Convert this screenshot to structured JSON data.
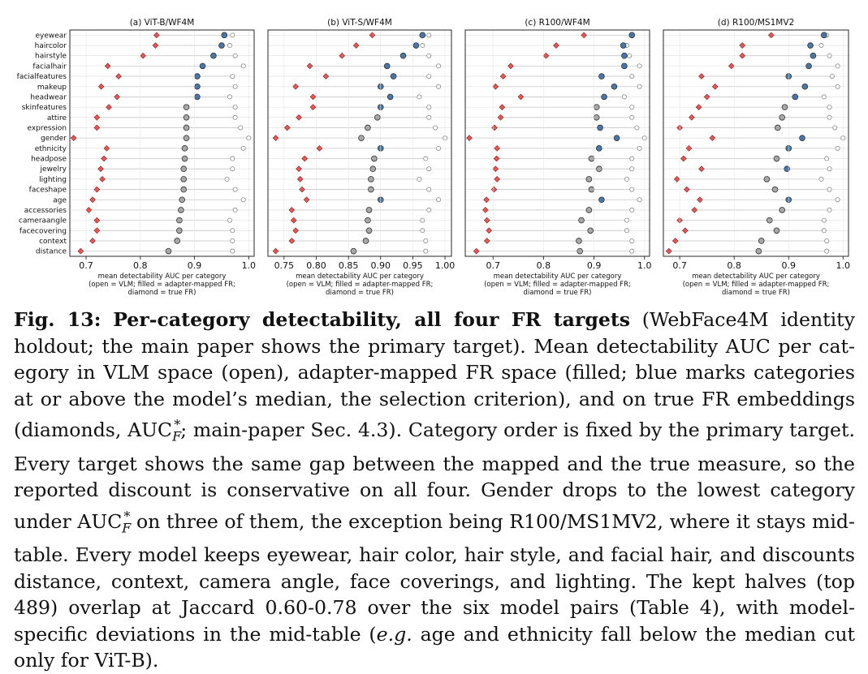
{
  "chart_data": {
    "type": "scatter",
    "xlabel": "mean detectability AUC per category\n(open = VLM; filled = adapter-mapped FR;\ndiamond = true FR)",
    "categories": [
      "eyewear",
      "haircolor",
      "hairstyle",
      "facialhair",
      "facialfeatures",
      "makeup",
      "headwear",
      "skinfeatures",
      "attire",
      "expression",
      "gender",
      "ethnicity",
      "headpose",
      "jewelry",
      "lighting",
      "faceshape",
      "age",
      "accessories",
      "cameraangle",
      "facecovering",
      "context",
      "distance"
    ],
    "colors": {
      "above_median": "#4a77a8",
      "below_median": "#a8a8a8",
      "true_fr": "#e05a5a",
      "open": "#ffffff",
      "edge": "#333333",
      "gridline": "#dddddd"
    },
    "panels": [
      {
        "title": "(a) ViT-B/WF4M",
        "xlim": [
          0.67,
          1.01
        ],
        "xticks": [
          "0.7",
          "0.8",
          "0.9",
          "1.0"
        ],
        "vlm": [
          0.97,
          0.965,
          0.975,
          0.99,
          0.97,
          0.975,
          0.965,
          0.975,
          0.975,
          0.985,
          1.0,
          0.99,
          0.97,
          0.97,
          0.96,
          0.975,
          0.99,
          0.975,
          0.965,
          0.97,
          0.97,
          0.97
        ],
        "fr_mapped": [
          0.955,
          0.95,
          0.935,
          0.915,
          0.905,
          0.905,
          0.905,
          0.885,
          0.885,
          0.885,
          0.885,
          0.882,
          0.882,
          0.88,
          0.88,
          0.88,
          0.877,
          0.875,
          0.872,
          0.872,
          0.868,
          0.852
        ],
        "above_median": [
          true,
          true,
          true,
          true,
          true,
          true,
          true,
          false,
          false,
          false,
          false,
          false,
          false,
          false,
          false,
          false,
          false,
          false,
          false,
          false,
          false,
          false
        ],
        "true_fr": [
          0.83,
          0.828,
          0.805,
          0.74,
          0.76,
          0.728,
          0.757,
          0.742,
          0.72,
          0.72,
          0.677,
          0.738,
          0.733,
          0.727,
          0.73,
          0.72,
          0.712,
          0.705,
          0.72,
          0.72,
          0.712,
          0.69
        ]
      },
      {
        "title": "(b) ViT-S/WF4M",
        "xlim": [
          0.725,
          1.01
        ],
        "xticks": [
          "0.75",
          "0.80",
          "0.85",
          "0.90",
          "0.95",
          "1.00"
        ],
        "vlm": [
          0.975,
          0.965,
          0.975,
          0.99,
          0.975,
          0.99,
          0.96,
          0.975,
          0.975,
          0.985,
          1.0,
          0.99,
          0.97,
          0.975,
          0.96,
          0.975,
          0.99,
          0.975,
          0.965,
          0.965,
          0.97,
          0.97
        ],
        "fr_mapped": [
          0.965,
          0.955,
          0.935,
          0.91,
          0.92,
          0.9,
          0.915,
          0.9,
          0.895,
          0.88,
          0.87,
          0.9,
          0.89,
          0.888,
          0.885,
          0.885,
          0.9,
          0.882,
          0.88,
          0.882,
          0.877,
          0.858
        ],
        "above_median": [
          true,
          true,
          true,
          true,
          true,
          true,
          true,
          true,
          false,
          false,
          false,
          true,
          false,
          false,
          false,
          false,
          true,
          false,
          false,
          false,
          false,
          false
        ],
        "true_fr": [
          0.887,
          0.862,
          0.84,
          0.79,
          0.815,
          0.768,
          0.795,
          0.795,
          0.773,
          0.755,
          0.737,
          0.805,
          0.782,
          0.773,
          0.775,
          0.778,
          0.785,
          0.762,
          0.765,
          0.768,
          0.762,
          0.737
        ]
      },
      {
        "title": "(c) R100/WF4M",
        "xlim": [
          0.645,
          1.01
        ],
        "xticks": [
          "0.7",
          "0.8",
          "0.9",
          "1.0"
        ],
        "vlm": [
          0.975,
          0.965,
          0.97,
          0.99,
          0.975,
          0.99,
          0.96,
          0.975,
          0.975,
          0.985,
          1.0,
          0.99,
          0.975,
          0.975,
          0.965,
          0.975,
          0.99,
          0.975,
          0.965,
          0.965,
          0.975,
          0.975
        ],
        "fr_mapped": [
          0.975,
          0.958,
          0.96,
          0.96,
          0.915,
          0.94,
          0.92,
          0.905,
          0.905,
          0.912,
          0.945,
          0.91,
          0.895,
          0.91,
          0.89,
          0.895,
          0.915,
          0.89,
          0.875,
          0.893,
          0.87,
          0.872
        ],
        "above_median": [
          true,
          true,
          true,
          true,
          true,
          true,
          true,
          false,
          false,
          true,
          true,
          true,
          false,
          false,
          false,
          false,
          true,
          false,
          false,
          false,
          false,
          false
        ],
        "true_fr": [
          0.88,
          0.825,
          0.805,
          0.735,
          0.72,
          0.705,
          0.755,
          0.718,
          0.715,
          0.703,
          0.653,
          0.708,
          0.707,
          0.705,
          0.708,
          0.702,
          0.687,
          0.685,
          0.688,
          0.692,
          0.688,
          0.667
        ]
      },
      {
        "title": "(d) R100/MS1MV2",
        "xlim": [
          0.67,
          1.01
        ],
        "xticks": [
          "0.7",
          "0.8",
          "0.9",
          "1.0"
        ],
        "vlm": [
          0.97,
          0.96,
          0.975,
          0.99,
          0.98,
          0.99,
          0.965,
          0.975,
          0.975,
          0.985,
          1.0,
          0.99,
          0.97,
          0.975,
          0.96,
          0.975,
          0.99,
          0.975,
          0.965,
          0.965,
          0.97,
          0.97
        ],
        "fr_mapped": [
          0.965,
          0.94,
          0.945,
          0.937,
          0.9,
          0.93,
          0.912,
          0.893,
          0.888,
          0.88,
          0.925,
          0.9,
          0.878,
          0.897,
          0.86,
          0.875,
          0.9,
          0.888,
          0.865,
          0.878,
          0.85,
          0.845
        ],
        "above_median": [
          true,
          true,
          true,
          true,
          true,
          true,
          true,
          false,
          false,
          false,
          true,
          true,
          false,
          true,
          false,
          false,
          true,
          false,
          false,
          false,
          false,
          false
        ],
        "true_fr": [
          0.868,
          0.815,
          0.815,
          0.795,
          0.74,
          0.765,
          0.75,
          0.735,
          0.722,
          0.7,
          0.76,
          0.717,
          0.707,
          0.74,
          0.695,
          0.713,
          0.737,
          0.727,
          0.7,
          0.71,
          0.692,
          0.68
        ]
      }
    ]
  },
  "caption": {
    "label": "Fig. 13:",
    "title": "Per-category detectability, all four FR targets",
    "body_1": " (WebFace4M identity holdout; the main paper shows the primary target). Mean detectability AUC per cat­egory in VLM space (open), adapter-mapped FR space (filled; blue marks categories at or above the model’s median, the selection criterion), and on true FR embeddings (diamonds, AUC",
    "sub": "F",
    "sup": "*",
    "body_2": "; main-paper Sec. 4.3). Category order is fixed by the primary target. Every target shows the same gap between the mapped and the true measure, so the reported discount is conservative on all four. Gender drops to the lowest category under AUC",
    "body_3": " on three of them, the exception being R100/MS1MV2, where it stays mid-table. Every model keeps eyewear, hair color, hair style, and facial hair, and discounts dis­tance, context, camera angle, face coverings, and lighting. The kept halves (top 489) overlap at Jaccard 0.60-0.78 over the six model pairs (Table 4), with model-specific deviations in the mid-table (",
    "eg": "e.g.",
    "body_4": " age and ethnicity fall below the median cut only for ViT-B)."
  }
}
